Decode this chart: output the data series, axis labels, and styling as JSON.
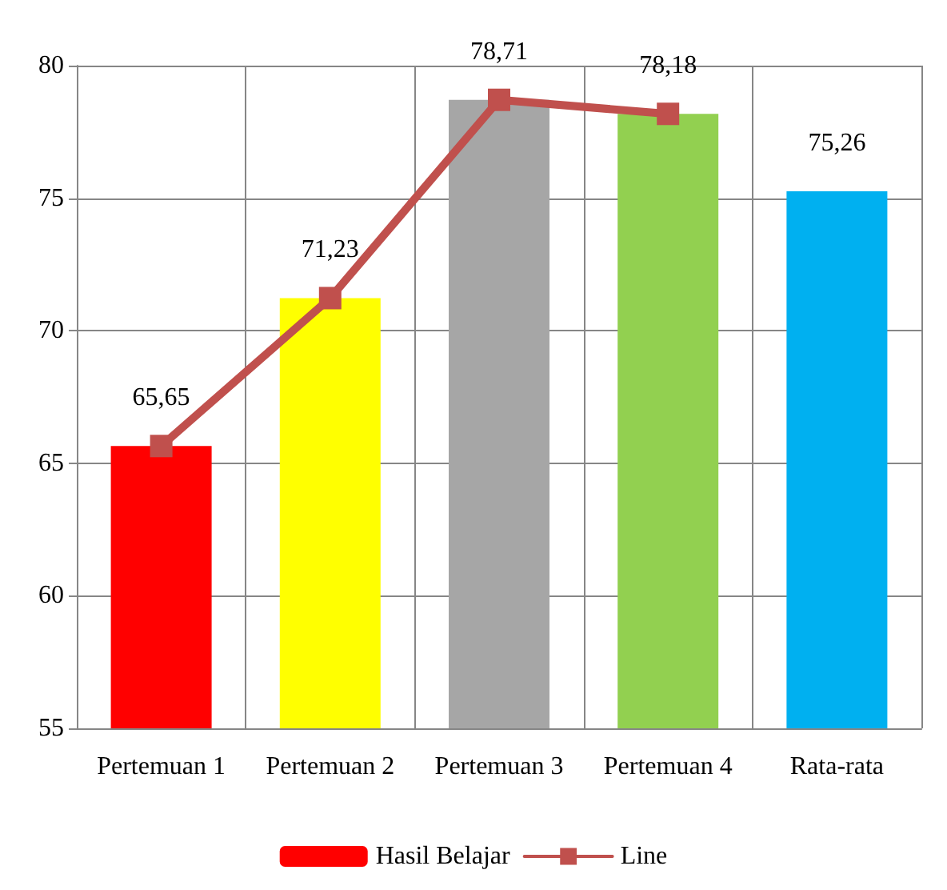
{
  "chart_data": {
    "type": "bar",
    "categories": [
      "Pertemuan 1",
      "Pertemuan 2",
      "Pertemuan 3",
      "Pertemuan 4",
      "Rata-rata"
    ],
    "series": [
      {
        "name": "Hasil Belajar",
        "colors": [
          "#ff0000",
          "#ffff00",
          "#a6a6a6",
          "#92d050",
          "#00b0f0"
        ],
        "values": [
          65.65,
          71.23,
          78.71,
          78.18,
          75.26
        ],
        "value_labels": [
          "65,65",
          "71,23",
          "78,71",
          "78,18",
          "75,26"
        ]
      },
      {
        "name": "Line",
        "type": "line",
        "color": "#c0504d",
        "values": [
          65.65,
          71.23,
          78.71,
          78.18,
          null
        ]
      }
    ],
    "ylim": [
      55,
      80
    ],
    "yticks": [
      55,
      60,
      65,
      70,
      75,
      80
    ],
    "grid": true,
    "legend": "bottom",
    "marker": "square",
    "line_style": "solid"
  }
}
